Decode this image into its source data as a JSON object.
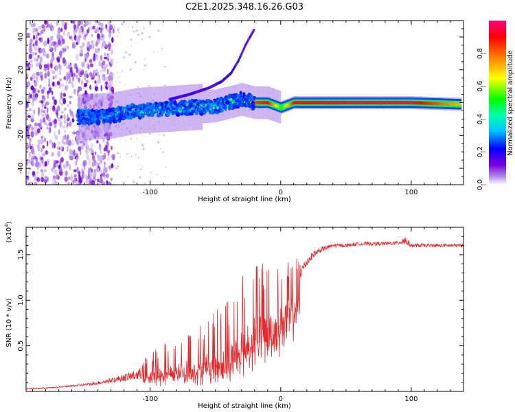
{
  "title": "C2E1.2025.348.16.26.G03",
  "colors": {
    "snr_line": "#e8282a",
    "frame": "#000000",
    "background": "#ffffff"
  },
  "chart_data": [
    {
      "type": "heatmap",
      "name": "spectrogram",
      "xlabel": "Height of straight line (km)",
      "ylabel": "Frequency (Hz)",
      "xlim": [
        -195,
        140
      ],
      "ylim": [
        -50,
        50
      ],
      "xticks": [
        -100,
        0,
        100
      ],
      "xtick_labels": [
        "-100",
        "0",
        "100"
      ],
      "yticks": [
        -40,
        -20,
        0,
        20,
        40
      ],
      "ytick_labels": [
        "-40",
        "-20",
        "0",
        "20",
        "40"
      ],
      "colorbar": {
        "label": "Normalized spectral amplitude",
        "range": [
          0,
          1
        ],
        "ticks": [
          0.0,
          0.2,
          0.4,
          0.6,
          0.8
        ],
        "tick_labels": [
          "0.0",
          "0.2",
          "0.4",
          "0.6",
          "0.8"
        ]
      },
      "features": {
        "noise_region_x": [
          -195,
          -128
        ],
        "main_ridge": {
          "x": [
            -155,
            -130,
            -110,
            -90,
            -70,
            -50,
            -30,
            -20,
            -10,
            0,
            10,
            50,
            100,
            138
          ],
          "freq_hz": [
            -9,
            -8,
            -5,
            -4,
            -3,
            -2,
            2,
            0,
            0,
            -3,
            0,
            0,
            0,
            -1
          ],
          "amplitude": [
            0.3,
            0.35,
            0.4,
            0.45,
            0.45,
            0.45,
            0.5,
            0.85,
            0.9,
            0.5,
            0.9,
            0.95,
            0.95,
            0.7
          ]
        },
        "upper_branch": {
          "x": [
            -85,
            -70,
            -55,
            -45,
            -38,
            -32,
            -27,
            -20
          ],
          "freq_hz": [
            2,
            5,
            9,
            13,
            18,
            26,
            35,
            45
          ]
        }
      }
    },
    {
      "type": "line",
      "name": "snr",
      "xlabel": "Height of straight line (km)",
      "ylabel": "SNR (10 * v/v)",
      "ylabel_multiplier": "(x10",
      "ylabel_multiplier_exp": "4",
      "xlim": [
        -195,
        140
      ],
      "ylim": [
        0,
        1.8
      ],
      "xticks": [
        -100,
        0,
        100
      ],
      "xtick_labels": [
        "-100",
        "0",
        "100"
      ],
      "yticks": [
        0.5,
        1.0,
        1.5
      ],
      "ytick_labels": [
        "0.5",
        "1.0",
        "1.5"
      ],
      "series": [
        {
          "name": "SNR",
          "x": [
            -195,
            -175,
            -160,
            -145,
            -130,
            -120,
            -110,
            -100,
            -90,
            -80,
            -70,
            -60,
            -50,
            -40,
            -30,
            -25,
            -20,
            -15,
            -10,
            -5,
            0,
            5,
            10,
            15,
            20,
            25,
            30,
            40,
            50,
            60,
            70,
            80,
            90,
            95,
            100,
            110,
            120,
            130,
            140
          ],
          "values": [
            0.03,
            0.04,
            0.06,
            0.08,
            0.12,
            0.15,
            0.18,
            0.2,
            0.25,
            0.28,
            0.3,
            0.35,
            0.4,
            0.45,
            0.6,
            0.7,
            0.75,
            0.8,
            0.85,
            0.85,
            0.95,
            1.05,
            1.15,
            1.3,
            1.42,
            1.5,
            1.55,
            1.6,
            1.6,
            1.62,
            1.62,
            1.62,
            1.63,
            1.66,
            1.6,
            1.6,
            1.6,
            1.6,
            1.6
          ],
          "noise_amp": [
            0.01,
            0.01,
            0.02,
            0.03,
            0.05,
            0.08,
            0.12,
            0.2,
            0.25,
            0.3,
            0.35,
            0.4,
            0.45,
            0.55,
            0.6,
            0.6,
            0.65,
            0.65,
            0.55,
            0.45,
            0.4,
            0.35,
            0.3,
            0.15,
            0.1,
            0.08,
            0.06,
            0.04,
            0.04,
            0.04,
            0.04,
            0.04,
            0.04,
            0.12,
            0.04,
            0.04,
            0.04,
            0.04,
            0.04
          ]
        }
      ]
    }
  ]
}
